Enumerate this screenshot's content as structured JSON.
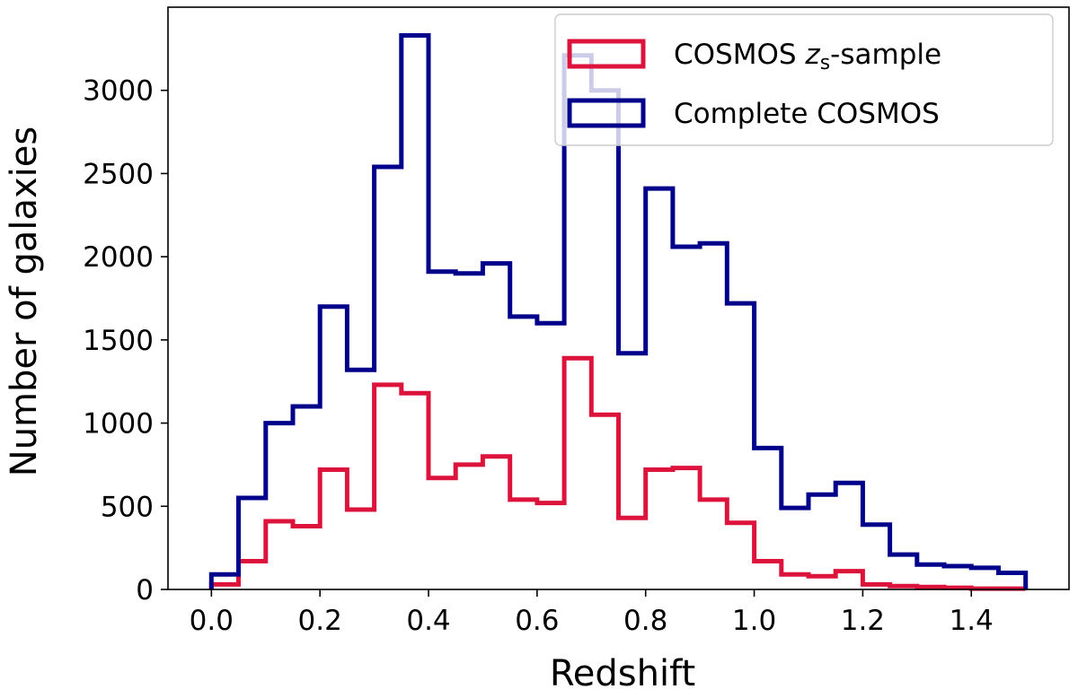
{
  "chart_data": {
    "type": "histogram",
    "xlabel": "Redshift",
    "ylabel": "Number of galaxies",
    "xlim": [
      -0.08,
      1.58
    ],
    "ylim": [
      0,
      3500
    ],
    "xticks": [
      "0.0",
      "0.2",
      "0.4",
      "0.6",
      "0.8",
      "1.0",
      "1.2",
      "1.4"
    ],
    "yticks": [
      "0",
      "500",
      "1000",
      "1500",
      "2000",
      "2500",
      "3000"
    ],
    "bin_edges": [
      0.0,
      0.05,
      0.1,
      0.15,
      0.2,
      0.25,
      0.3,
      0.35,
      0.4,
      0.45,
      0.5,
      0.55,
      0.6,
      0.65,
      0.7,
      0.75,
      0.8,
      0.85,
      0.9,
      0.95,
      1.0,
      1.05,
      1.1,
      1.15,
      1.2,
      1.25,
      1.3,
      1.35,
      1.4,
      1.45,
      1.5
    ],
    "grid": false,
    "legend_position": "top-right",
    "series": [
      {
        "name_prefix": "COSMOS ",
        "name_math": "z",
        "name_sub": "s",
        "name_suffix": "-sample",
        "color": "#dc143c",
        "values": [
          30,
          170,
          410,
          380,
          720,
          480,
          1230,
          1180,
          670,
          750,
          800,
          540,
          520,
          1390,
          1050,
          430,
          720,
          730,
          540,
          400,
          170,
          90,
          80,
          110,
          30,
          20,
          15,
          10,
          5,
          5
        ]
      },
      {
        "name": "Complete COSMOS",
        "color": "#00008b",
        "values": [
          90,
          550,
          1000,
          1100,
          1700,
          1320,
          2540,
          3330,
          1910,
          1900,
          1960,
          1640,
          1600,
          3210,
          3000,
          1420,
          2410,
          2060,
          2080,
          1720,
          850,
          490,
          570,
          640,
          390,
          210,
          150,
          140,
          130,
          100
        ]
      }
    ]
  }
}
